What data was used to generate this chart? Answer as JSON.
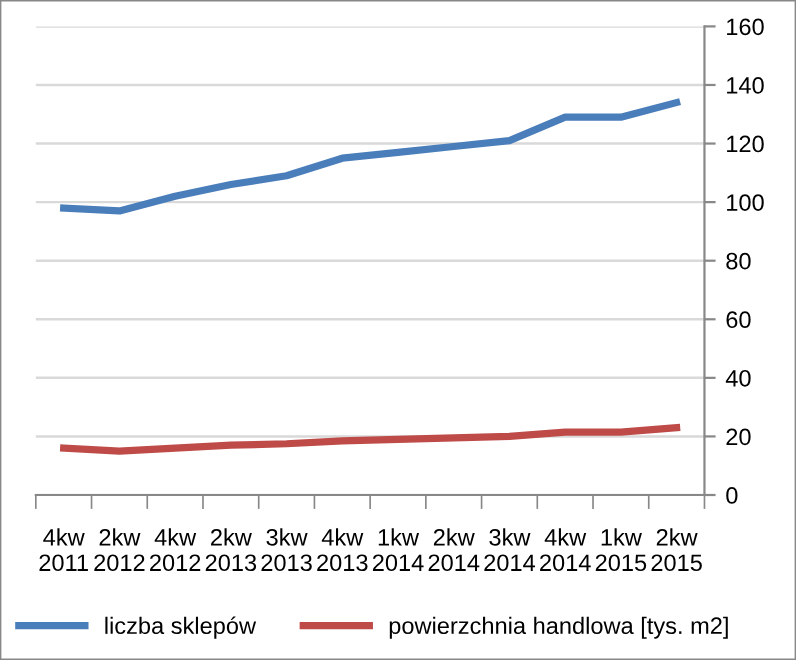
{
  "chart_data": {
    "type": "line",
    "categories": [
      "4kw\n2011",
      "2kw\n2012",
      "4kw\n2012",
      "2kw\n2013",
      "3kw\n2013",
      "4kw\n2013",
      "1kw\n2014",
      "2kw\n2014",
      "3kw\n2014",
      "4kw\n2014",
      "1kw\n2015",
      "2kw\n2015"
    ],
    "series": [
      {
        "name": "liczba sklepów",
        "color": "#4a7ebb",
        "values": [
          98,
          97,
          102,
          106,
          109,
          115,
          117,
          119,
          121,
          129,
          129,
          134
        ]
      },
      {
        "name": "powierzchnia handlowa [tys. m2]",
        "color": "#be4b48",
        "values": [
          16,
          15,
          16,
          17,
          17.5,
          18.5,
          19,
          19.5,
          20,
          21.5,
          21.5,
          23
        ]
      }
    ],
    "ylim": [
      0,
      160
    ],
    "yticks": [
      0,
      20,
      40,
      60,
      80,
      100,
      120,
      140,
      160
    ],
    "grid": "y",
    "legend": "bottom",
    "marker": "none",
    "line_style": "solid"
  }
}
